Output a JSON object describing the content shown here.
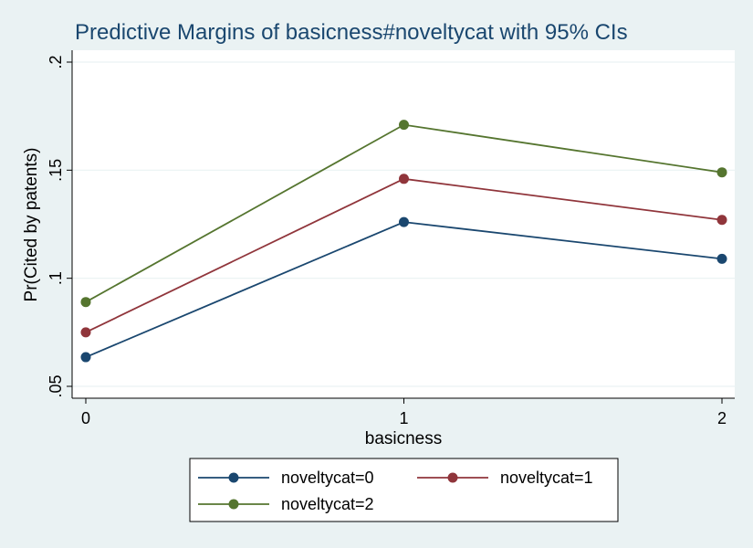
{
  "chart_data": {
    "type": "line",
    "title": "Predictive Margins of basicness#noveltycat with 95% CIs",
    "xlabel": "basicness",
    "ylabel": "Pr(Cited by patents)",
    "x": [
      0,
      1,
      2
    ],
    "x_tick_labels": [
      "0",
      "1",
      "2"
    ],
    "y_ticks": [
      0.05,
      0.1,
      0.15,
      0.2
    ],
    "y_tick_labels": [
      ".05",
      ".1",
      ".15",
      ".2"
    ],
    "xlim": [
      0,
      2
    ],
    "ylim": [
      0.05,
      0.2
    ],
    "grid": "horizontal",
    "legend_position": "bottom",
    "series": [
      {
        "name": "noveltycat=0",
        "color": "#1a476f",
        "values": [
          0.0635,
          0.126,
          0.109
        ]
      },
      {
        "name": "noveltycat=1",
        "color": "#90353b",
        "values": [
          0.075,
          0.146,
          0.127
        ]
      },
      {
        "name": "noveltycat=2",
        "color": "#55752f",
        "values": [
          0.089,
          0.171,
          0.149
        ]
      }
    ]
  }
}
